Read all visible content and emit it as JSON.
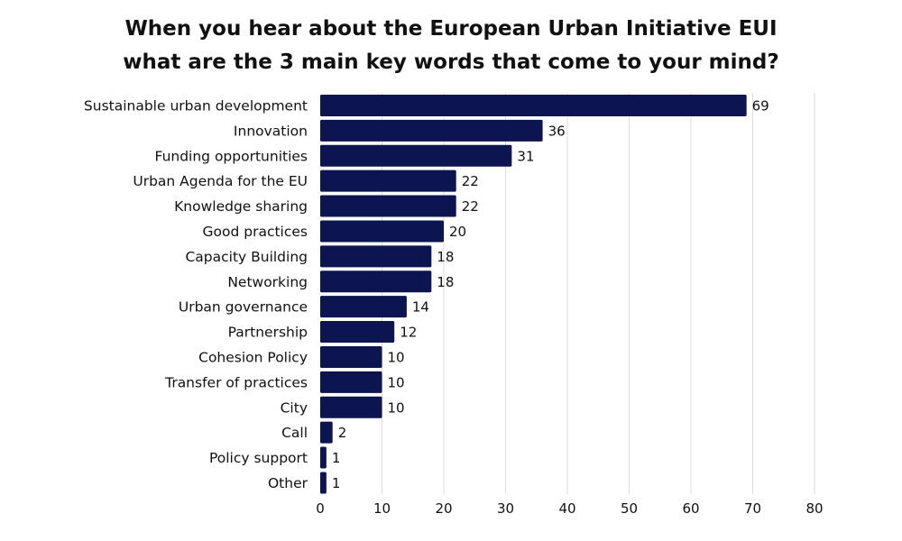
{
  "chart_data": {
    "type": "bar",
    "orientation": "horizontal",
    "title_lines": [
      "When you hear about the European Urban Initiative EUI",
      "what are the 3 main key words that come to your mind?"
    ],
    "categories": [
      "Sustainable urban development",
      "Innovation",
      "Funding opportunities",
      "Urban Agenda for the EU",
      "Knowledge sharing",
      "Good practices",
      "Capacity Building",
      "Networking",
      "Urban governance",
      "Partnership",
      "Cohesion Policy",
      "Transfer of practices",
      "City",
      "Call",
      "Policy support",
      "Other"
    ],
    "values": [
      69,
      36,
      31,
      22,
      22,
      20,
      18,
      18,
      14,
      12,
      10,
      10,
      10,
      2,
      1,
      1
    ],
    "xlim": [
      0,
      80
    ],
    "xticks": [
      0,
      10,
      20,
      30,
      40,
      50,
      60,
      70,
      80
    ],
    "grid": "vertical",
    "legend": "none",
    "data_labels": true,
    "colors": {
      "bar": "#0c154f",
      "grid": "#dddddd",
      "text": "#111111"
    }
  }
}
